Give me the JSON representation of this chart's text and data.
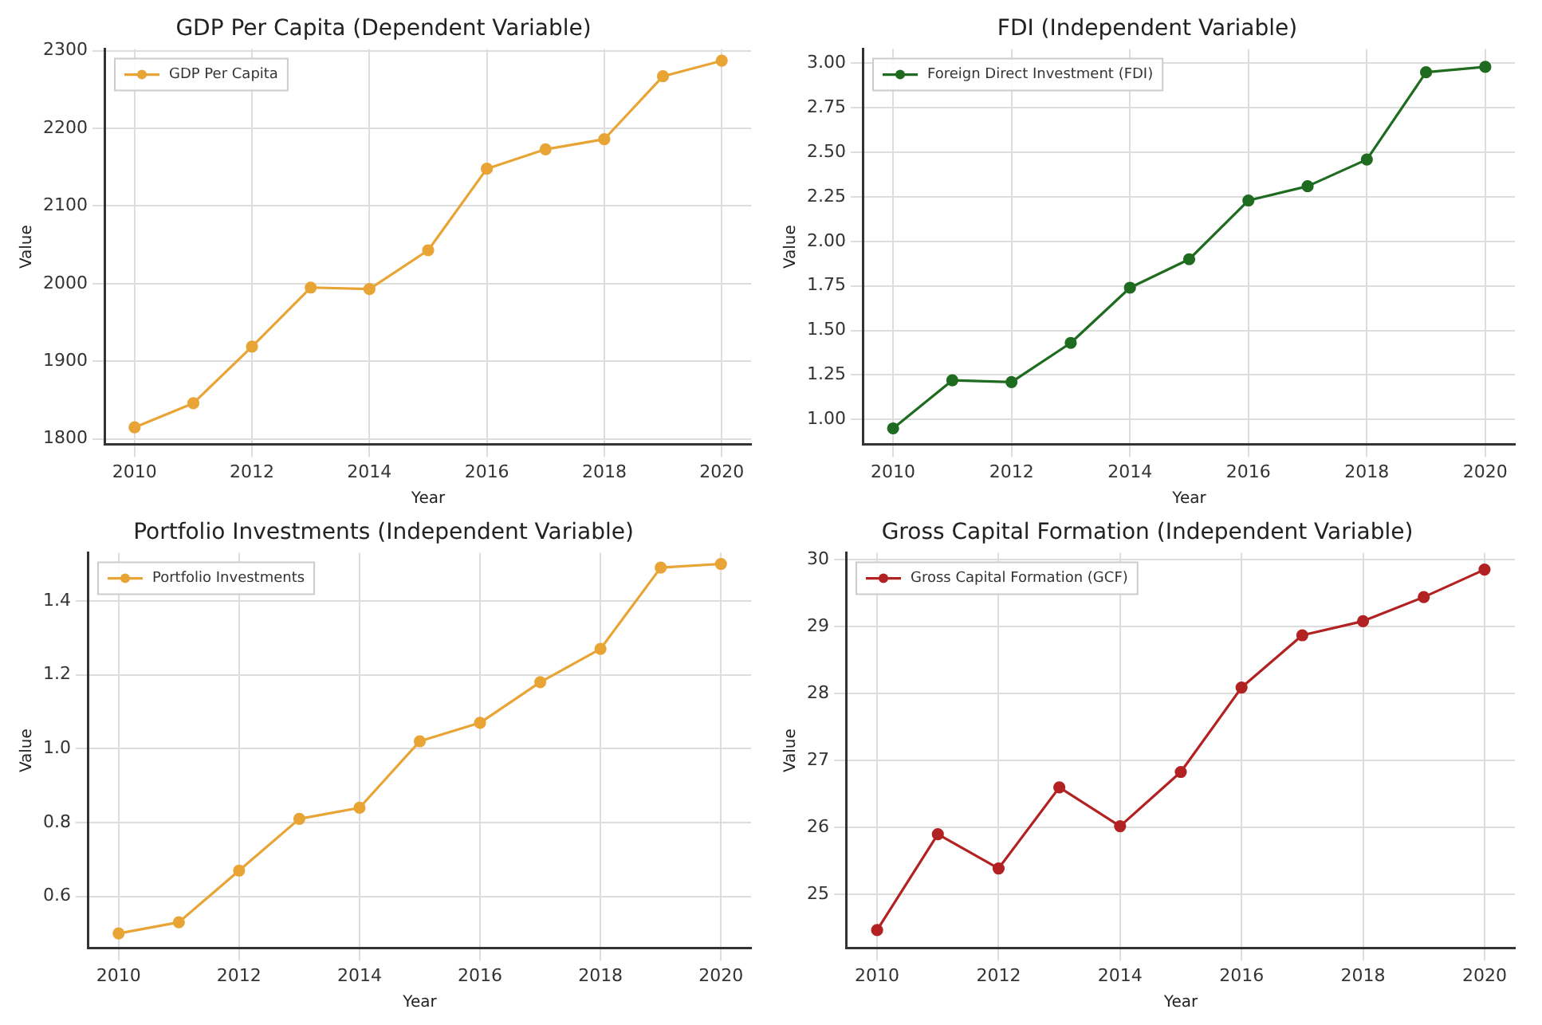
{
  "chart_data": [
    {
      "type": "line",
      "title": "GDP Per Capita (Dependent Variable)",
      "xlabel": "Year",
      "ylabel": "Value",
      "x": [
        2010,
        2011,
        2012,
        2013,
        2014,
        2015,
        2016,
        2017,
        2018,
        2019,
        2020
      ],
      "series": [
        {
          "name": "GDP Per Capita",
          "color": "#e8a435",
          "values": [
            1815,
            1846,
            1919,
            1995,
            1993,
            2043,
            2148,
            2173,
            2186,
            2267,
            2287
          ]
        }
      ],
      "xlim": [
        2009.5,
        2020.5
      ],
      "xticks": [
        2010,
        2012,
        2014,
        2016,
        2018,
        2020
      ],
      "ylim": [
        1793,
        2302
      ],
      "yticks": [
        1800,
        1900,
        2000,
        2100,
        2200,
        2300
      ],
      "grid": true,
      "legend": "top left",
      "marker": "circle",
      "line_style": "solid"
    },
    {
      "type": "line",
      "title": "FDI (Independent Variable)",
      "xlabel": "Year",
      "ylabel": "Value",
      "x": [
        2010,
        2011,
        2012,
        2013,
        2014,
        2015,
        2016,
        2017,
        2018,
        2019,
        2020
      ],
      "series": [
        {
          "name": "Foreign Direct Investment (FDI)",
          "color": "#1f6b1f",
          "values": [
            0.95,
            1.22,
            1.21,
            1.43,
            1.74,
            1.9,
            2.23,
            2.31,
            2.46,
            2.95,
            2.98
          ]
        }
      ],
      "xlim": [
        2009.5,
        2020.5
      ],
      "xticks": [
        2010,
        2012,
        2014,
        2016,
        2018,
        2020
      ],
      "ylim": [
        0.86,
        3.08
      ],
      "yticks": [
        {
          "value": 1,
          "label": "1.00"
        },
        1.25,
        {
          "value": 1.5,
          "label": "1.50"
        },
        1.75,
        {
          "value": 2,
          "label": "2.00"
        },
        2.25,
        {
          "value": 2.5,
          "label": "2.50"
        },
        2.75,
        {
          "value": 3,
          "label": "3.00"
        }
      ],
      "grid": true,
      "legend": "top left",
      "marker": "circle",
      "line_style": "solid"
    },
    {
      "type": "line",
      "title": "Portfolio Investments (Independent Variable)",
      "xlabel": "Year",
      "ylabel": "Value",
      "x": [
        2010,
        2011,
        2012,
        2013,
        2014,
        2015,
        2016,
        2017,
        2018,
        2019,
        2020
      ],
      "series": [
        {
          "name": "Portfolio Investments",
          "color": "#e8a435",
          "values": [
            0.5,
            0.53,
            0.67,
            0.81,
            0.84,
            1.02,
            1.07,
            1.18,
            1.27,
            1.49,
            1.5
          ]
        }
      ],
      "xlim": [
        2009.5,
        2020.5
      ],
      "xticks": [
        2010,
        2012,
        2014,
        2016,
        2018,
        2020
      ],
      "ylim": [
        0.46,
        1.53
      ],
      "yticks": [
        0.6,
        0.8,
        {
          "value": 1,
          "label": "1.0"
        },
        1.2,
        1.4
      ],
      "grid": true,
      "legend": "top left",
      "marker": "circle",
      "line_style": "solid"
    },
    {
      "type": "line",
      "title": "Gross Capital Formation (Independent Variable)",
      "xlabel": "Year",
      "ylabel": "Value",
      "x": [
        2010,
        2011,
        2012,
        2013,
        2014,
        2015,
        2016,
        2017,
        2018,
        2019,
        2020
      ],
      "series": [
        {
          "name": "Gross Capital Formation (GCF)",
          "color": "#b22222",
          "values": [
            24.47,
            25.9,
            25.39,
            26.6,
            26.02,
            26.83,
            28.09,
            28.87,
            29.08,
            29.44,
            29.85
          ]
        }
      ],
      "xlim": [
        2009.5,
        2020.5
      ],
      "xticks": [
        2010,
        2012,
        2014,
        2016,
        2018,
        2020
      ],
      "ylim": [
        24.2,
        30.1
      ],
      "yticks": [
        25,
        26,
        27,
        28,
        29,
        30
      ],
      "grid": true,
      "legend": "top left",
      "marker": "circle",
      "line_style": "solid"
    }
  ]
}
